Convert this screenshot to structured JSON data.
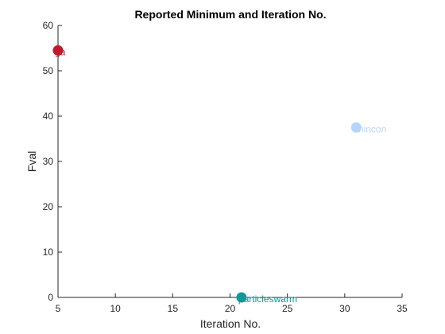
{
  "chart_data": {
    "type": "scatter",
    "title": "Reported Minimum and Iteration No.",
    "xlabel": "Iteration No.",
    "ylabel": "Fval",
    "xlim": [
      5,
      35
    ],
    "ylim": [
      0,
      60
    ],
    "xticks": [
      5,
      10,
      15,
      20,
      25,
      30,
      35
    ],
    "yticks": [
      0,
      10,
      20,
      30,
      40,
      50,
      60
    ],
    "grid": false,
    "points": [
      {
        "label": "ga",
        "x": 5,
        "y": 54.5,
        "color": "#c0192a"
      },
      {
        "label": "fmincon",
        "x": 31,
        "y": 37.5,
        "color": "#b5d6fa"
      },
      {
        "label": "particleswarm",
        "x": 21,
        "y": 0,
        "color": "#13989a"
      }
    ]
  }
}
